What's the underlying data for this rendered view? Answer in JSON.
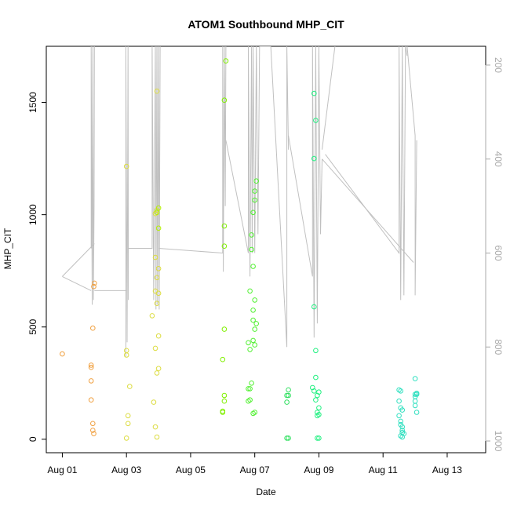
{
  "chart_data": {
    "type": "scatter",
    "title": "ATOM1 Southbound MHP_CIT",
    "xlabel": "Date",
    "ylabel": "MHP_CIT",
    "x_unit": "days after Aug 01 00:00",
    "xlim": [
      -0.5,
      13.2
    ],
    "ylim": [
      -60,
      1750
    ],
    "x_ticks": [
      {
        "label": "Aug 01",
        "value": 0
      },
      {
        "label": "Aug 03",
        "value": 2
      },
      {
        "label": "Aug 05",
        "value": 4
      },
      {
        "label": "Aug 07",
        "value": 6
      },
      {
        "label": "Aug 09",
        "value": 8
      },
      {
        "label": "Aug 11",
        "value": 10
      },
      {
        "label": "Aug 13",
        "value": 12
      }
    ],
    "y_ticks": [
      0,
      500,
      1000,
      1500
    ],
    "secondary_axis": {
      "side": "right",
      "color": "#aaaaaa",
      "reversed": true,
      "lim": [
        1025,
        160
      ],
      "ticks": [
        200,
        400,
        600,
        800,
        1000
      ]
    },
    "grid": false,
    "legend": "none",
    "series": [
      {
        "color": "#f0a040",
        "points": [
          [
            0,
            380
          ],
          [
            0.9,
            330
          ],
          [
            0.9,
            320
          ],
          [
            0.9,
            260
          ],
          [
            0.9,
            175
          ],
          [
            0.95,
            70
          ],
          [
            0.95,
            40
          ],
          [
            0.98,
            25
          ],
          [
            0.95,
            495
          ],
          [
            0.98,
            680
          ],
          [
            1.0,
            695
          ]
        ]
      },
      {
        "color": "#dcdc40",
        "points": [
          [
            2.0,
            1215
          ],
          [
            2.0,
            395
          ],
          [
            2.0,
            375
          ],
          [
            2.1,
            235
          ],
          [
            2.05,
            105
          ],
          [
            2.05,
            70
          ],
          [
            2.0,
            5
          ],
          [
            2.8,
            550
          ],
          [
            2.9,
            405
          ],
          [
            2.85,
            165
          ],
          [
            2.9,
            55
          ],
          [
            2.95,
            10
          ],
          [
            2.9,
            1005
          ],
          [
            2.95,
            1020
          ],
          [
            2.95,
            1550
          ],
          [
            2.9,
            810
          ],
          [
            2.95,
            720
          ],
          [
            3.0,
            760
          ],
          [
            2.9,
            660
          ],
          [
            3.0,
            650
          ],
          [
            2.95,
            605
          ],
          [
            3.0,
            460
          ],
          [
            3.0,
            315
          ],
          [
            2.95,
            295
          ]
        ]
      },
      {
        "color": "#b4f000",
        "points": [
          [
            3.0,
            940
          ],
          [
            2.95,
            1010
          ],
          [
            3.0,
            1030
          ]
        ]
      },
      {
        "color": "#80f000",
        "points": [
          [
            5.0,
            355
          ],
          [
            5.05,
            490
          ],
          [
            5.05,
            195
          ],
          [
            5.05,
            170
          ],
          [
            5.0,
            125
          ],
          [
            5.0,
            120
          ],
          [
            5.05,
            860
          ],
          [
            5.05,
            950
          ],
          [
            5.05,
            1510
          ],
          [
            5.1,
            1685
          ]
        ]
      },
      {
        "color": "#50f030",
        "points": [
          [
            5.8,
            430
          ],
          [
            5.85,
            400
          ],
          [
            5.8,
            225
          ],
          [
            5.85,
            225
          ],
          [
            5.85,
            175
          ],
          [
            5.8,
            170
          ],
          [
            5.9,
            250
          ],
          [
            5.85,
            660
          ],
          [
            5.9,
            845
          ],
          [
            5.95,
            770
          ],
          [
            5.9,
            910
          ],
          [
            5.95,
            1010
          ],
          [
            6.0,
            1065
          ],
          [
            6.0,
            1105
          ],
          [
            6.05,
            1150
          ],
          [
            6.0,
            620
          ],
          [
            5.95,
            575
          ],
          [
            5.95,
            530
          ],
          [
            6.0,
            490
          ],
          [
            6.05,
            515
          ],
          [
            5.95,
            440
          ],
          [
            6.0,
            420
          ],
          [
            6.0,
            120
          ],
          [
            5.95,
            115
          ]
        ]
      },
      {
        "color": "#30e060",
        "points": [
          [
            7.0,
            195
          ],
          [
            7.05,
            195
          ],
          [
            7.05,
            220
          ],
          [
            7.0,
            165
          ],
          [
            7.0,
            5
          ],
          [
            7.05,
            5
          ]
        ]
      },
      {
        "color": "#20f080",
        "points": [
          [
            7.85,
            1540
          ],
          [
            7.9,
            1420
          ],
          [
            7.85,
            1250
          ],
          [
            7.85,
            590
          ],
          [
            7.9,
            395
          ],
          [
            7.8,
            230
          ],
          [
            7.85,
            215
          ],
          [
            7.9,
            275
          ],
          [
            8.0,
            210
          ],
          [
            7.95,
            195
          ],
          [
            7.9,
            175
          ],
          [
            8.0,
            140
          ],
          [
            7.95,
            120
          ],
          [
            8.0,
            110
          ],
          [
            7.95,
            105
          ],
          [
            7.95,
            5
          ],
          [
            8.0,
            5
          ]
        ]
      },
      {
        "color": "#30e0c0",
        "points": [
          [
            10.5,
            220
          ],
          [
            10.55,
            215
          ],
          [
            10.5,
            170
          ],
          [
            10.55,
            140
          ],
          [
            10.6,
            130
          ],
          [
            10.5,
            105
          ],
          [
            10.55,
            80
          ],
          [
            10.55,
            65
          ],
          [
            10.6,
            55
          ],
          [
            10.6,
            40
          ],
          [
            10.6,
            30
          ],
          [
            10.65,
            25
          ],
          [
            10.55,
            15
          ],
          [
            10.6,
            10
          ],
          [
            11.0,
            270
          ],
          [
            11.05,
            205
          ],
          [
            11.0,
            200
          ],
          [
            11.05,
            200
          ],
          [
            11.0,
            190
          ],
          [
            11.0,
            170
          ],
          [
            11.0,
            150
          ],
          [
            11.05,
            120
          ]
        ]
      }
    ],
    "line_series": {
      "color": "#c0c0c0",
      "axis": "secondary",
      "polylines": [
        [
          [
            0,
            650
          ],
          [
            0.9,
            680
          ]
        ],
        [
          [
            0.9,
            590
          ],
          [
            0.9,
            160
          ],
          [
            0.93,
            710
          ],
          [
            0.95,
            160
          ],
          [
            0.97,
            700
          ],
          [
            0.99,
            500
          ],
          [
            1.0,
            160
          ]
        ],
        [
          [
            1.0,
            580
          ],
          [
            0,
            650
          ]
        ],
        [
          [
            1.0,
            680
          ],
          [
            2.0,
            680
          ]
        ],
        [
          [
            1.98,
            820
          ],
          [
            1.98,
            160
          ],
          [
            2.02,
            790
          ],
          [
            2.05,
            160
          ],
          [
            2.06,
            700
          ],
          [
            2.06,
            590
          ],
          [
            2.8,
            590
          ],
          [
            2.8,
            160
          ],
          [
            2.85,
            700
          ],
          [
            2.9,
            160
          ],
          [
            2.92,
            720
          ],
          [
            2.95,
            160
          ],
          [
            2.97,
            710
          ],
          [
            3.0,
            160
          ],
          [
            3.02,
            720
          ],
          [
            3.05,
            160
          ]
        ],
        [
          [
            3.0,
            590
          ],
          [
            5.0,
            600
          ],
          [
            5.0,
            160
          ],
          [
            5.02,
            640
          ],
          [
            5.05,
            160
          ],
          [
            5.08,
            500
          ],
          [
            5.1,
            160
          ]
        ],
        [
          [
            5.1,
            360
          ],
          [
            5.8,
            600
          ],
          [
            5.8,
            160
          ],
          [
            5.85,
            650
          ],
          [
            5.9,
            160
          ],
          [
            5.92,
            600
          ],
          [
            5.95,
            160
          ],
          [
            6.0,
            600
          ],
          [
            6.05,
            160
          ],
          [
            6.1,
            560
          ],
          [
            6.15,
            160
          ]
        ],
        [
          [
            6.15,
            160
          ],
          [
            6.5,
            160
          ],
          [
            7.0,
            800
          ],
          [
            7.0,
            160
          ],
          [
            7.05,
            380
          ]
        ],
        [
          [
            7.05,
            350
          ],
          [
            7.8,
            650
          ],
          [
            7.8,
            160
          ],
          [
            7.85,
            780
          ],
          [
            7.9,
            160
          ],
          [
            7.95,
            750
          ],
          [
            8.0,
            160
          ],
          [
            8.05,
            560
          ],
          [
            8.1,
            400
          ]
        ],
        [
          [
            8.1,
            380
          ],
          [
            8.5,
            160
          ]
        ],
        [
          [
            8.2,
            390
          ],
          [
            10.5,
            600
          ],
          [
            10.5,
            160
          ],
          [
            10.55,
            700
          ],
          [
            10.6,
            160
          ],
          [
            10.65,
            690
          ],
          [
            10.7,
            160
          ],
          [
            10.75,
            180
          ]
        ],
        [
          [
            10.75,
            160
          ],
          [
            11.0,
            350
          ],
          [
            11.0,
            690
          ],
          [
            11.05,
            360
          ]
        ],
        [
          [
            8.1,
            400
          ],
          [
            10.95,
            620
          ]
        ]
      ]
    }
  }
}
